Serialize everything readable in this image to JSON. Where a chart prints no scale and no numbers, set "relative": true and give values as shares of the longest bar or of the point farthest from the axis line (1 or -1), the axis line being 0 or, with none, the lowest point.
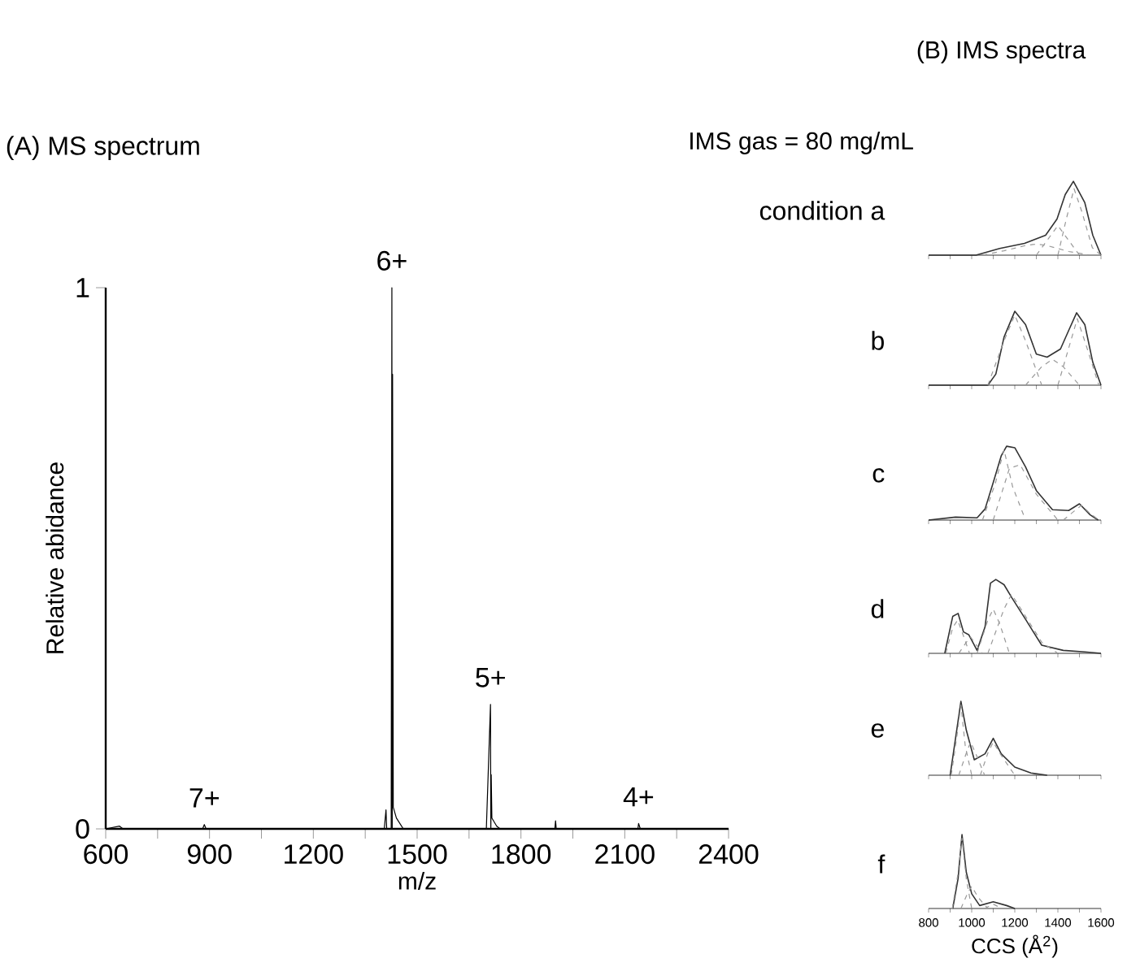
{
  "chart_data": [
    {
      "type": "line",
      "title": "(A) MS spectrum",
      "xlabel": "m/z",
      "ylabel": "Relative abidance",
      "xlim": [
        600,
        2400
      ],
      "xticks": [
        600,
        {
          "value": 750,
          "label": null
        },
        900,
        {
          "value": 1050,
          "label": null
        },
        1200,
        {
          "value": 1350,
          "label": null
        },
        1500,
        {
          "value": 1650,
          "label": null
        },
        1800,
        {
          "value": 1950,
          "label": null
        },
        2100,
        {
          "value": 2250,
          "label": null
        },
        2400
      ],
      "ylim": [
        0,
        1
      ],
      "yticks": [
        0,
        1
      ],
      "series": [
        {
          "color": "#000000",
          "x": [
            600,
            640,
            650,
            880,
            885,
            890,
            1405,
            1410,
            1412,
            1425,
            1427,
            1428,
            1429,
            1431,
            1440,
            1460,
            1700,
            1712,
            1713,
            1714,
            1716,
            1730,
            1740,
            1898,
            1900,
            1902,
            2138,
            2140,
            2145,
            2400
          ],
          "values": [
            0,
            0.005,
            0,
            0,
            0.008,
            0,
            0,
            0.035,
            0,
            0,
            1.0,
            0,
            0.84,
            0.04,
            0.02,
            0,
            0,
            0.23,
            0,
            0.1,
            0.02,
            0.005,
            0,
            0,
            0.015,
            0,
            0,
            0.01,
            0,
            0
          ]
        }
      ],
      "annotations": [
        {
          "text": "7+",
          "x": 885,
          "y": 0.008
        },
        {
          "text": "6+",
          "x": 1427,
          "y": 1.0
        },
        {
          "text": "5+",
          "x": 1712,
          "y": 0.23
        },
        {
          "text": "4+",
          "x": 2140,
          "y": 0.01
        }
      ],
      "line_style": "solid"
    },
    {
      "type": "line",
      "title": "(B) IMS spectra",
      "subtitle": "IMS gas = 80 mg/mL",
      "ylabel": "condition a",
      "relative": true,
      "tick_labels": false,
      "xlim": [
        800,
        1600
      ],
      "xticks": [
        {
          "value": 800,
          "label": null
        },
        {
          "value": 900,
          "label": null
        },
        {
          "value": 1000,
          "label": null
        },
        {
          "value": 1100,
          "label": null
        },
        {
          "value": 1200,
          "label": null
        },
        {
          "value": 1300,
          "label": null
        },
        {
          "value": 1400,
          "label": null
        },
        {
          "value": 1500,
          "label": null
        },
        {
          "value": 1600,
          "label": null
        }
      ],
      "series": [
        {
          "color": "#333333",
          "x": [
            800,
            1020,
            1130,
            1245,
            1343,
            1396,
            1434,
            1472,
            1525,
            1562,
            1600
          ],
          "values": [
            0,
            0,
            0.09,
            0.16,
            0.27,
            0.49,
            0.82,
            1.0,
            0.71,
            0.27,
            0
          ]
        },
        {
          "color": "#999999",
          "line_style": "dashed",
          "x": [
            1050,
            1150,
            1250,
            1300,
            1350,
            1450,
            1550
          ],
          "values": [
            0,
            0.06,
            0.13,
            0.15,
            0.13,
            0.05,
            0
          ]
        },
        {
          "color": "#999999",
          "line_style": "dashed",
          "x": [
            1300,
            1350,
            1400,
            1450,
            1500
          ],
          "values": [
            0,
            0.2,
            0.4,
            0.2,
            0
          ]
        },
        {
          "color": "#999999",
          "line_style": "dashed",
          "x": [
            1400,
            1440,
            1475,
            1510,
            1560,
            1600
          ],
          "values": [
            0,
            0.5,
            0.9,
            0.6,
            0.1,
            0
          ]
        }
      ]
    },
    {
      "type": "line",
      "ylabel": "b",
      "relative": true,
      "tick_labels": false,
      "xlim": [
        800,
        1600
      ],
      "xticks": [
        {
          "value": 800,
          "label": null
        },
        {
          "value": 900,
          "label": null
        },
        {
          "value": 1000,
          "label": null
        },
        {
          "value": 1100,
          "label": null
        },
        {
          "value": 1200,
          "label": null
        },
        {
          "value": 1300,
          "label": null
        },
        {
          "value": 1400,
          "label": null
        },
        {
          "value": 1500,
          "label": null
        },
        {
          "value": 1600,
          "label": null
        }
      ],
      "series": [
        {
          "color": "#333333",
          "x": [
            800,
            1075,
            1112,
            1150,
            1200,
            1250,
            1300,
            1350,
            1412,
            1450,
            1487,
            1525,
            1562,
            1600
          ],
          "values": [
            0,
            0,
            0.15,
            0.65,
            1.0,
            0.82,
            0.42,
            0.38,
            0.49,
            0.74,
            0.98,
            0.82,
            0.31,
            0
          ]
        },
        {
          "color": "#999999",
          "line_style": "dashed",
          "x": [
            1075,
            1150,
            1200,
            1250,
            1325
          ],
          "values": [
            0,
            0.6,
            0.95,
            0.6,
            0
          ]
        },
        {
          "color": "#999999",
          "line_style": "dashed",
          "x": [
            1250,
            1325,
            1375,
            1425,
            1500
          ],
          "values": [
            0,
            0.25,
            0.35,
            0.25,
            0
          ]
        },
        {
          "color": "#999999",
          "line_style": "dashed",
          "x": [
            1400,
            1450,
            1490,
            1530,
            1590
          ],
          "values": [
            0,
            0.5,
            0.9,
            0.55,
            0
          ]
        }
      ]
    },
    {
      "type": "line",
      "ylabel": "c",
      "relative": true,
      "tick_labels": false,
      "xlim": [
        800,
        1600
      ],
      "xticks": [
        {
          "value": 800,
          "label": null
        },
        {
          "value": 900,
          "label": null
        },
        {
          "value": 1000,
          "label": null
        },
        {
          "value": 1100,
          "label": null
        },
        {
          "value": 1200,
          "label": null
        },
        {
          "value": 1300,
          "label": null
        },
        {
          "value": 1400,
          "label": null
        },
        {
          "value": 1500,
          "label": null
        },
        {
          "value": 1600,
          "label": null
        }
      ],
      "series": [
        {
          "color": "#333333",
          "x": [
            800,
            925,
            1025,
            1062,
            1100,
            1137,
            1162,
            1200,
            1250,
            1300,
            1375,
            1450,
            1500,
            1550,
            1587
          ],
          "values": [
            0,
            0.04,
            0.03,
            0.15,
            0.51,
            0.87,
            1.0,
            0.98,
            0.72,
            0.4,
            0.14,
            0.13,
            0.22,
            0.07,
            0
          ]
        },
        {
          "color": "#999999",
          "line_style": "dashed",
          "x": [
            1050,
            1110,
            1150,
            1190,
            1250
          ],
          "values": [
            0,
            0.5,
            0.95,
            0.45,
            0
          ]
        },
        {
          "color": "#999999",
          "line_style": "dashed",
          "x": [
            1100,
            1175,
            1225,
            1300,
            1400
          ],
          "values": [
            0,
            0.7,
            0.75,
            0.35,
            0
          ]
        },
        {
          "color": "#999999",
          "line_style": "dashed",
          "x": [
            1425,
            1475,
            1510,
            1545,
            1590
          ],
          "values": [
            0,
            0.12,
            0.2,
            0.1,
            0
          ]
        }
      ]
    },
    {
      "type": "line",
      "ylabel": "d",
      "relative": true,
      "tick_labels": false,
      "xlim": [
        800,
        1600
      ],
      "xticks": [
        {
          "value": 800,
          "label": null
        },
        {
          "value": 900,
          "label": null
        },
        {
          "value": 1000,
          "label": null
        },
        {
          "value": 1100,
          "label": null
        },
        {
          "value": 1200,
          "label": null
        },
        {
          "value": 1300,
          "label": null
        },
        {
          "value": 1400,
          "label": null
        },
        {
          "value": 1500,
          "label": null
        },
        {
          "value": 1600,
          "label": null
        }
      ],
      "series": [
        {
          "color": "#333333",
          "x": [
            875,
            912,
            937,
            962,
            987,
            1025,
            1062,
            1087,
            1112,
            1150,
            1187,
            1250,
            1325,
            1425,
            1525,
            1600
          ],
          "values": [
            0,
            0.5,
            0.54,
            0.29,
            0.25,
            0.04,
            0.36,
            0.95,
            1.0,
            0.93,
            0.75,
            0.46,
            0.11,
            0.04,
            0.02,
            0
          ]
        },
        {
          "color": "#999999",
          "line_style": "dashed",
          "x": [
            880,
            912,
            935,
            960,
            990
          ],
          "values": [
            0,
            0.35,
            0.45,
            0.25,
            0
          ]
        },
        {
          "color": "#999999",
          "line_style": "dashed",
          "x": [
            940,
            975,
            995,
            1020,
            1050
          ],
          "values": [
            0,
            0.15,
            0.22,
            0.12,
            0
          ]
        },
        {
          "color": "#999999",
          "line_style": "dashed",
          "x": [
            1025,
            1075,
            1100,
            1130,
            1175
          ],
          "values": [
            0,
            0.45,
            0.6,
            0.4,
            0
          ]
        },
        {
          "color": "#999999",
          "line_style": "dashed",
          "x": [
            1075,
            1150,
            1185,
            1250,
            1325,
            1400
          ],
          "values": [
            0,
            0.6,
            0.8,
            0.5,
            0.15,
            0
          ]
        }
      ]
    },
    {
      "type": "line",
      "ylabel": "e",
      "relative": true,
      "tick_labels": false,
      "xlim": [
        800,
        1600
      ],
      "xticks": [
        {
          "value": 800,
          "label": null
        },
        {
          "value": 900,
          "label": null
        },
        {
          "value": 1000,
          "label": null
        },
        {
          "value": 1100,
          "label": null
        },
        {
          "value": 1200,
          "label": null
        },
        {
          "value": 1300,
          "label": null
        },
        {
          "value": 1400,
          "label": null
        },
        {
          "value": 1500,
          "label": null
        },
        {
          "value": 1600,
          "label": null
        }
      ],
      "series": [
        {
          "color": "#333333",
          "x": [
            900,
            925,
            950,
            975,
            1012,
            1062,
            1100,
            1137,
            1200,
            1275,
            1350
          ],
          "values": [
            0,
            0.5,
            1.0,
            0.61,
            0.21,
            0.29,
            0.5,
            0.29,
            0.11,
            0.03,
            0
          ]
        },
        {
          "color": "#999999",
          "line_style": "dashed",
          "x": [
            905,
            930,
            950,
            970,
            1000
          ],
          "values": [
            0,
            0.5,
            0.95,
            0.4,
            0
          ]
        },
        {
          "color": "#999999",
          "line_style": "dashed",
          "x": [
            940,
            975,
            995,
            1025,
            1060
          ],
          "values": [
            0,
            0.3,
            0.45,
            0.25,
            0
          ]
        },
        {
          "color": "#999999",
          "line_style": "dashed",
          "x": [
            1040,
            1075,
            1100,
            1130,
            1200
          ],
          "values": [
            0,
            0.3,
            0.45,
            0.3,
            0
          ]
        }
      ]
    },
    {
      "type": "line",
      "ylabel": "f",
      "xlabel": "CCS (Å$^{2}$)",
      "relative": true,
      "tick_labels": "x",
      "xlim": [
        800,
        1600
      ],
      "xticks": [
        800,
        {
          "value": 900,
          "label": null
        },
        1000,
        {
          "value": 1100,
          "label": null
        },
        1200,
        {
          "value": 1300,
          "label": null
        },
        1400,
        {
          "value": 1500,
          "label": null
        },
        1600
      ],
      "series": [
        {
          "color": "#333333",
          "x": [
            912,
            937,
            955,
            975,
            1000,
            1037,
            1100,
            1162,
            1200
          ],
          "values": [
            0,
            0.41,
            1.0,
            0.49,
            0.2,
            0.04,
            0.09,
            0.04,
            0
          ]
        },
        {
          "color": "#999999",
          "line_style": "dashed",
          "x": [
            910,
            935,
            955,
            975,
            1000
          ],
          "values": [
            0,
            0.45,
            0.95,
            0.4,
            0
          ]
        },
        {
          "color": "#999999",
          "line_style": "dashed",
          "x": [
            950,
            980,
            1000,
            1030,
            1075
          ],
          "values": [
            0,
            0.2,
            0.3,
            0.15,
            0
          ]
        },
        {
          "color": "#999999",
          "line_style": "dashed",
          "x": [
            1060,
            1100,
            1140
          ],
          "values": [
            0,
            0.06,
            0
          ]
        }
      ]
    }
  ]
}
